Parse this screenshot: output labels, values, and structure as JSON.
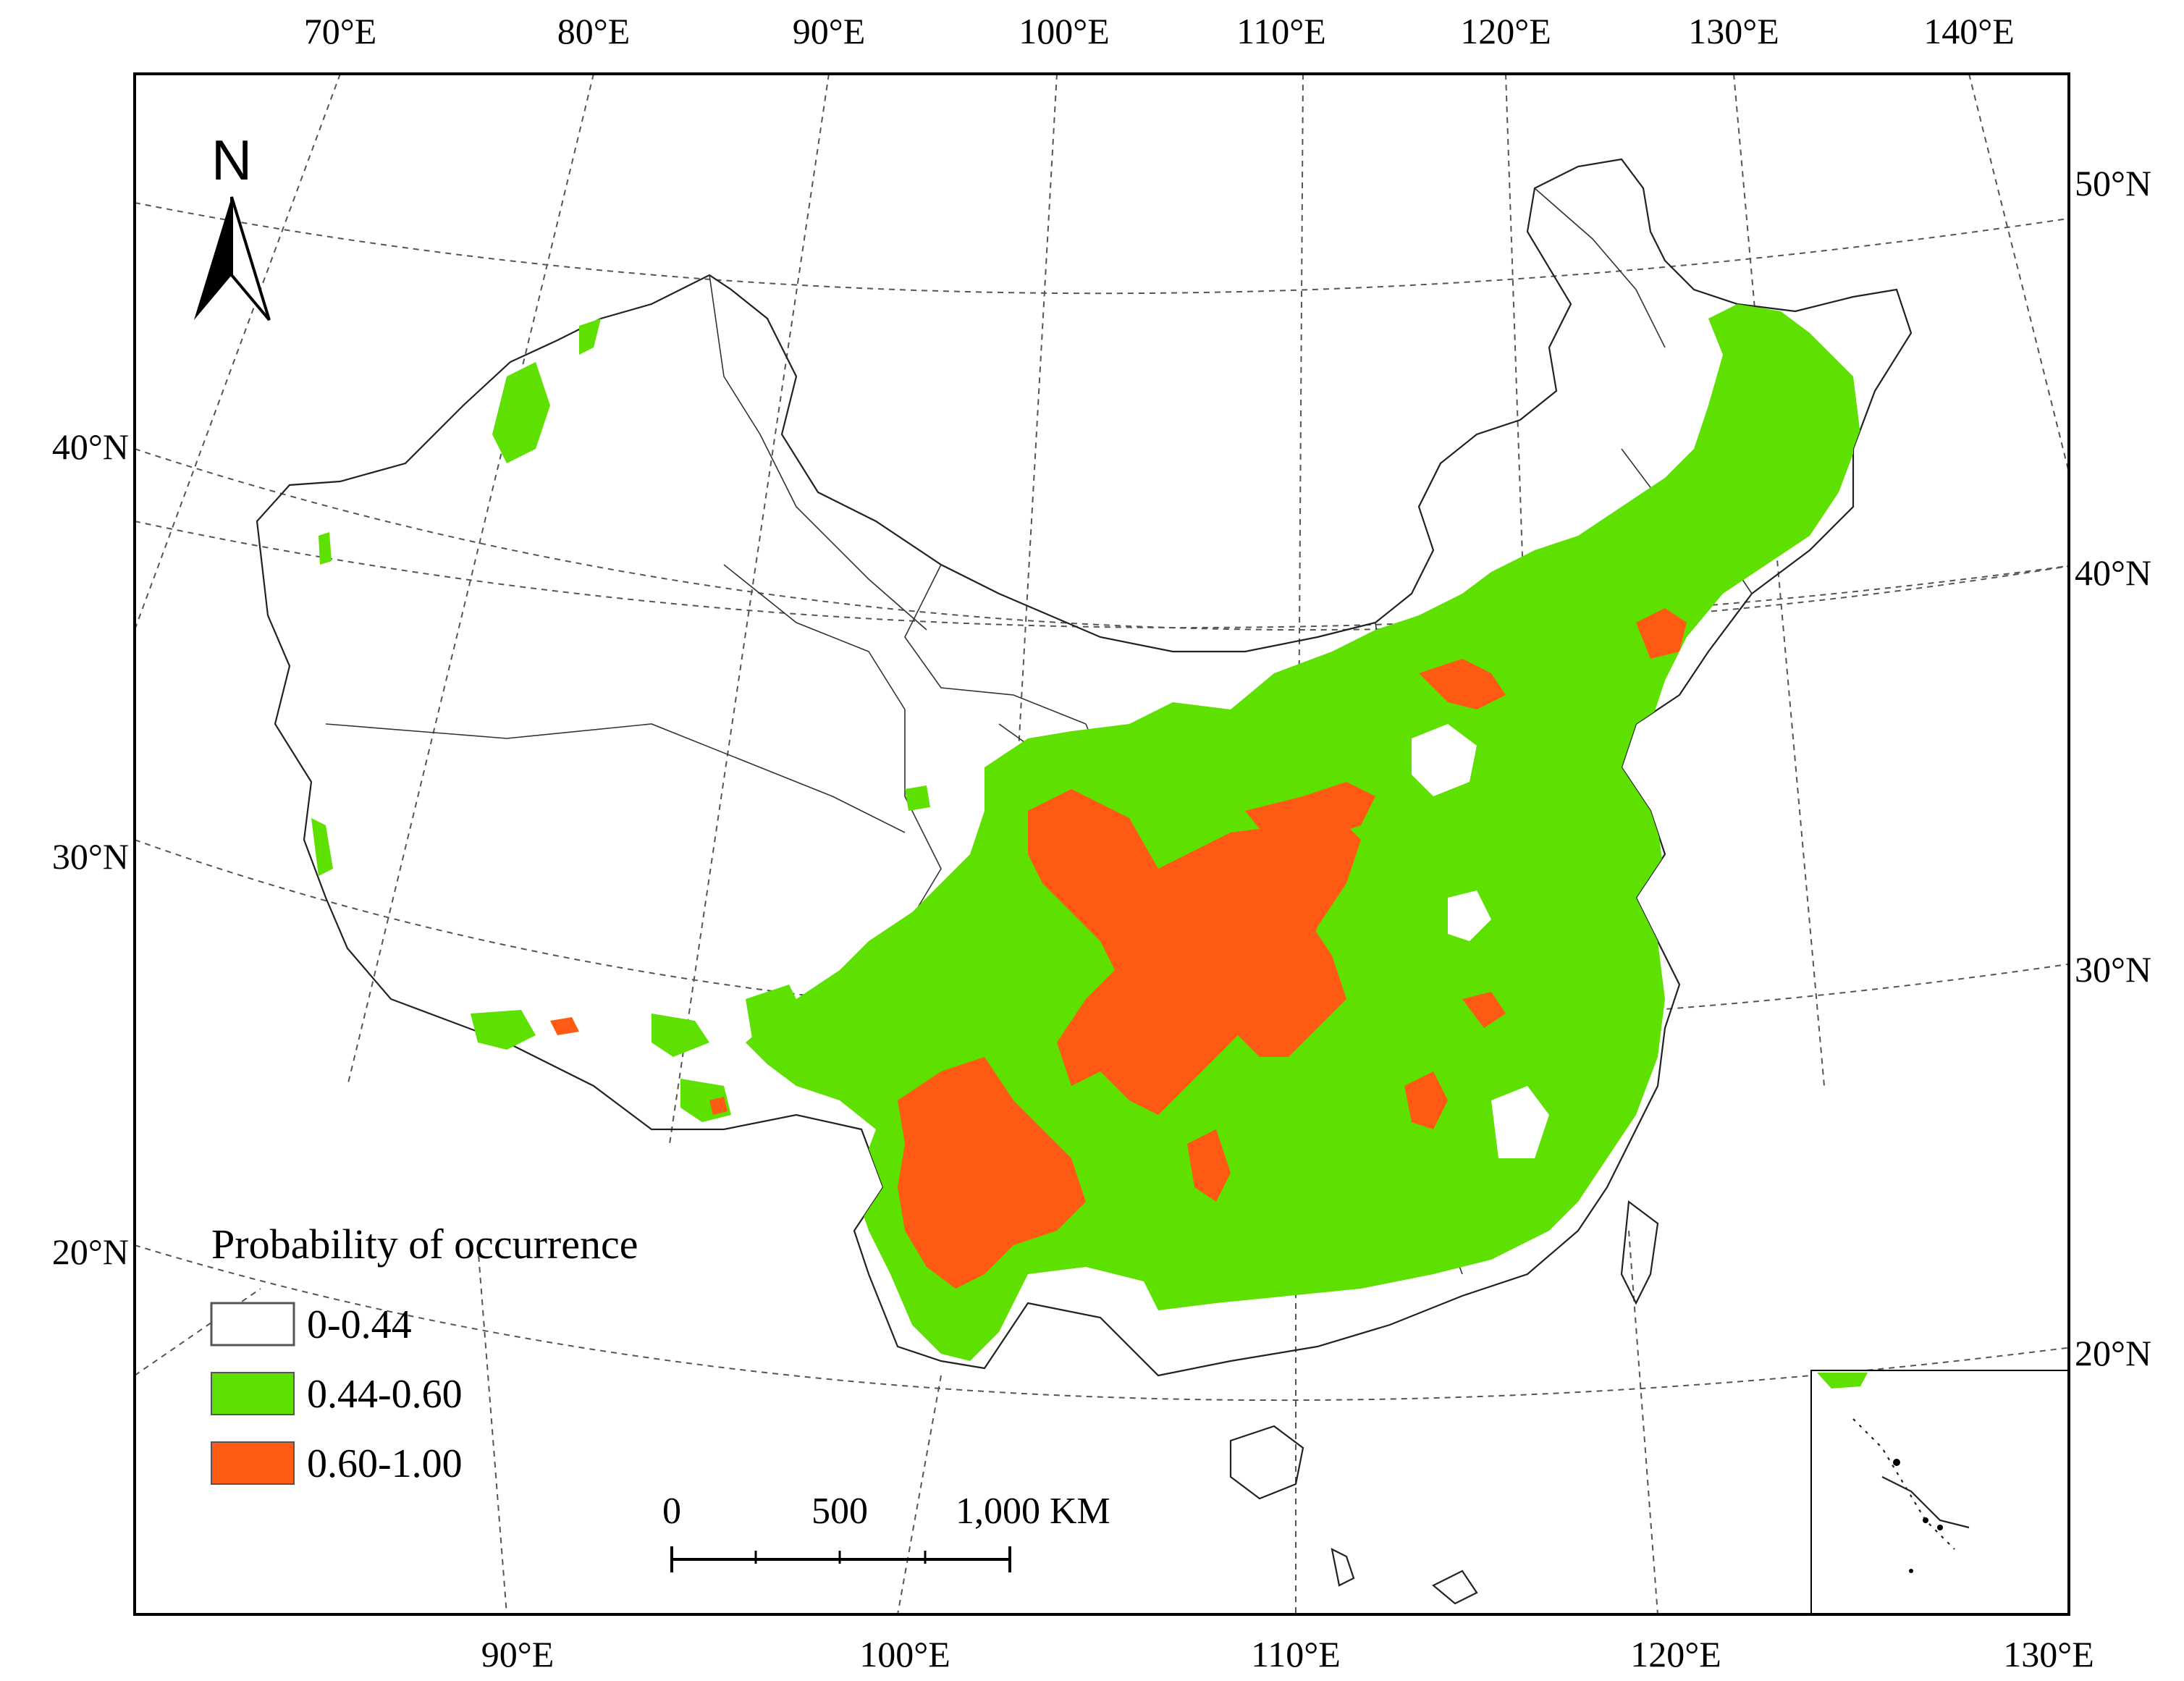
{
  "map": {
    "north_label": "N",
    "top_longitudes": [
      "70°E",
      "80°E",
      "90°E",
      "100°E",
      "110°E",
      "120°E",
      "130°E",
      "140°E"
    ],
    "bottom_longitudes": [
      "90°E",
      "100°E",
      "110°E",
      "120°E",
      "130°E"
    ],
    "left_latitudes": [
      "40°N",
      "30°N",
      "20°N"
    ],
    "right_latitudes": [
      "50°N",
      "40°N",
      "30°N",
      "20°N"
    ]
  },
  "legend": {
    "title": "Probability of occurrence",
    "items": [
      {
        "label": "0-0.44",
        "color": "#ffffff"
      },
      {
        "label": "0.44-0.60",
        "color": "#5ee000"
      },
      {
        "label": "0.60-1.00",
        "color": "#ff5a14"
      }
    ]
  },
  "scale_bar": {
    "labels": [
      "0",
      "500",
      "1,000 KM"
    ]
  },
  "colors": {
    "low": "#ffffff",
    "medium": "#5ee000",
    "high": "#ff5a14",
    "frame": "#000000"
  }
}
